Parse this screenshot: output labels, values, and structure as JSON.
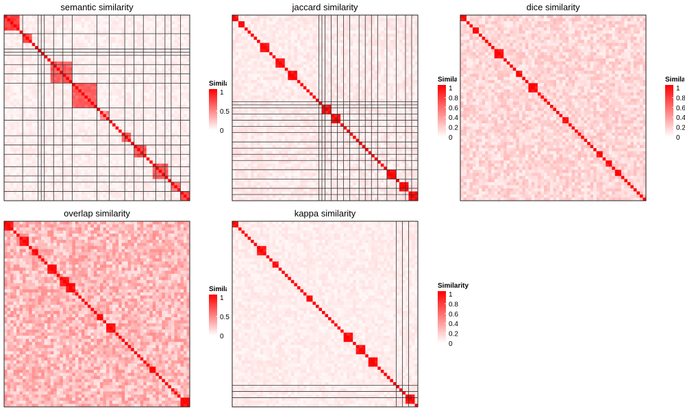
{
  "chart_data": [
    {
      "type": "heatmap",
      "title": "semantic similarity",
      "n": 60,
      "colors": {
        "low": "#ffffff",
        "high": "#ff0000"
      },
      "legend": {
        "title": "Similarity",
        "ticks": [
          0,
          0.5,
          1
        ],
        "range": [
          0,
          1
        ]
      },
      "blocks": [
        [
          0,
          4,
          0.85
        ],
        [
          6,
          8,
          0.75
        ],
        [
          15,
          21,
          0.7
        ],
        [
          22,
          29,
          0.7
        ],
        [
          31,
          33,
          0.55
        ],
        [
          38,
          40,
          0.7
        ],
        [
          42,
          45,
          0.75
        ],
        [
          48,
          52,
          0.7
        ],
        [
          54,
          56,
          0.65
        ],
        [
          57,
          59,
          0.8
        ]
      ],
      "background": 0.07,
      "split_after": [
        5,
        10,
        11,
        12,
        15,
        18,
        21,
        29,
        33,
        38,
        41,
        44,
        48,
        51,
        53,
        56,
        59
      ]
    },
    {
      "type": "heatmap",
      "title": "jaccard similarity",
      "n": 60,
      "colors": {
        "low": "#ffffff",
        "high": "#ff0000"
      },
      "legend": {
        "title": "Similarity",
        "ticks": [
          0,
          0.2,
          0.4,
          0.6,
          0.8,
          1
        ],
        "range": [
          0,
          1
        ]
      },
      "blocks": [
        [
          0,
          1,
          1
        ],
        [
          2,
          3,
          1
        ],
        [
          9,
          11,
          1
        ],
        [
          14,
          16,
          1
        ],
        [
          18,
          20,
          1
        ],
        [
          29,
          31,
          1
        ],
        [
          32,
          34,
          1
        ],
        [
          50,
          52,
          1
        ],
        [
          54,
          56,
          1
        ],
        [
          57,
          59,
          1
        ]
      ],
      "background": 0.09,
      "split_after": [
        27,
        28,
        29,
        31,
        33,
        35,
        37,
        40,
        42,
        44,
        46,
        49,
        52,
        55,
        57,
        59
      ]
    },
    {
      "type": "heatmap",
      "title": "dice similarity",
      "n": 60,
      "colors": {
        "low": "#ffffff",
        "high": "#ff0000"
      },
      "legend": {
        "title": "Similarity",
        "ticks": [
          0,
          0.2,
          0.4,
          0.6,
          0.8,
          1
        ],
        "range": [
          0,
          1
        ]
      },
      "blocks": [
        [
          0,
          1,
          1
        ],
        [
          4,
          5,
          1
        ],
        [
          11,
          13,
          1
        ],
        [
          18,
          19,
          1
        ],
        [
          22,
          24,
          1
        ],
        [
          33,
          34,
          1
        ],
        [
          44,
          45,
          1
        ],
        [
          47,
          48,
          1
        ],
        [
          50,
          51,
          1
        ]
      ],
      "background": 0.18,
      "split_after": [
        59
      ]
    },
    {
      "type": "heatmap",
      "title": "overlap similarity",
      "n": 60,
      "colors": {
        "low": "#ffffff",
        "high": "#ff0000"
      },
      "legend": {
        "title": "Similarity",
        "ticks": [
          0,
          0.5,
          1
        ],
        "range": [
          0,
          1
        ]
      },
      "blocks": [
        [
          0,
          2,
          1
        ],
        [
          5,
          7,
          1
        ],
        [
          9,
          10,
          1
        ],
        [
          14,
          16,
          1
        ],
        [
          18,
          20,
          1
        ],
        [
          20,
          22,
          1
        ],
        [
          30,
          31,
          1
        ],
        [
          33,
          35,
          1
        ],
        [
          47,
          48,
          1
        ],
        [
          57,
          59,
          1
        ]
      ],
      "background": 0.3,
      "split_after": [
        59
      ]
    },
    {
      "type": "heatmap",
      "title": "kappa similarity",
      "n": 60,
      "colors": {
        "low": "#ffffff",
        "high": "#ff0000"
      },
      "legend": {
        "title": "Similarity",
        "ticks": [
          0,
          0.2,
          0.4,
          0.6,
          0.8,
          1
        ],
        "range": [
          0,
          1
        ]
      },
      "blocks": [
        [
          0,
          1,
          1
        ],
        [
          8,
          10,
          1
        ],
        [
          13,
          14,
          1
        ],
        [
          24,
          25,
          1
        ],
        [
          36,
          38,
          1
        ],
        [
          40,
          42,
          1
        ],
        [
          44,
          46,
          1
        ],
        [
          56,
          58,
          1
        ]
      ],
      "background": 0.08,
      "split_after": [
        52,
        54,
        56,
        59
      ]
    }
  ]
}
